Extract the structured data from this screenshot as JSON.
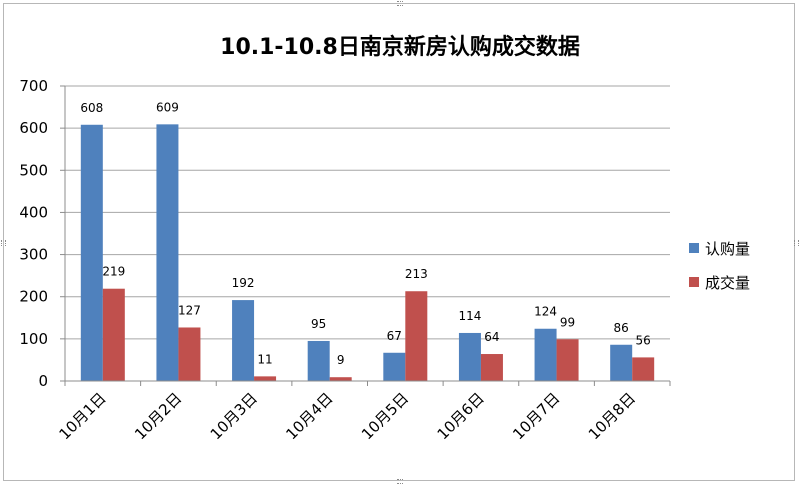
{
  "chart_data": {
    "type": "bar",
    "title": "10.1-10.8日南京新房认购成交数据",
    "categories": [
      "10月1日",
      "10月2日",
      "10月3日",
      "10月4日",
      "10月5日",
      "10月6日",
      "10月7日",
      "10月8日"
    ],
    "series": [
      {
        "name": "认购量",
        "color": "#4f81bd",
        "values": [
          608,
          609,
          192,
          95,
          67,
          114,
          124,
          86
        ]
      },
      {
        "name": "成交量",
        "color": "#c0504d",
        "values": [
          219,
          127,
          11,
          9,
          213,
          64,
          99,
          56
        ]
      }
    ],
    "ylim": [
      0,
      700
    ],
    "yticks": [
      0,
      100,
      200,
      300,
      400,
      500,
      600,
      700
    ],
    "grid": true,
    "legend_position": "right"
  }
}
